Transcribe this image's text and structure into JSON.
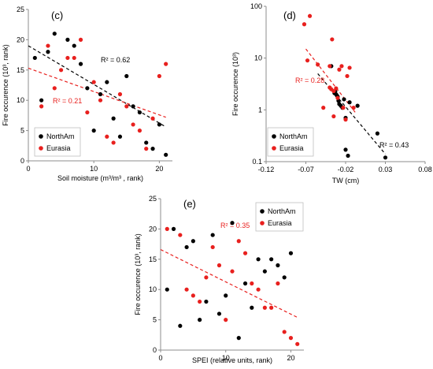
{
  "colors": {
    "north": "#000000",
    "eurasia": "#e8201e",
    "axis": "#8c8c8c"
  },
  "chart_data": [
    {
      "type": "scatter",
      "panel": "(c)",
      "xlabel": "Soil moisture (m³/m³ , rank)",
      "ylabel": "Fire occurence (10³, rank)",
      "xlim": [
        0,
        22
      ],
      "ylim": [
        0,
        25
      ],
      "xticks": [
        0,
        10,
        20
      ],
      "yticks": [
        0,
        5,
        10,
        15,
        20,
        25
      ],
      "legend": {
        "placement": "bottom-left",
        "boxed": true
      },
      "series": [
        {
          "name": "NorthAm",
          "points": [
            [
              1,
              17
            ],
            [
              2,
              10
            ],
            [
              3,
              18
            ],
            [
              4,
              21
            ],
            [
              6,
              20
            ],
            [
              7,
              19
            ],
            [
              8,
              16
            ],
            [
              9,
              12
            ],
            [
              10,
              5
            ],
            [
              11,
              11
            ],
            [
              12,
              13
            ],
            [
              13,
              7
            ],
            [
              14,
              4
            ],
            [
              15,
              14
            ],
            [
              16,
              9
            ],
            [
              17,
              8
            ],
            [
              18,
              3
            ],
            [
              19,
              2
            ],
            [
              20,
              6
            ],
            [
              21,
              1
            ]
          ]
        },
        {
          "name": "Eurasia",
          "points": [
            [
              2,
              9
            ],
            [
              3,
              19
            ],
            [
              4,
              12
            ],
            [
              5,
              15
            ],
            [
              6,
              17
            ],
            [
              7,
              17
            ],
            [
              8,
              20
            ],
            [
              9,
              8
            ],
            [
              10,
              13
            ],
            [
              11,
              10
            ],
            [
              12,
              4
            ],
            [
              13,
              3
            ],
            [
              14,
              11
            ],
            [
              15,
              9
            ],
            [
              16,
              6
            ],
            [
              17,
              5
            ],
            [
              18,
              2
            ],
            [
              19,
              7
            ],
            [
              20,
              14
            ],
            [
              21,
              16
            ]
          ]
        }
      ],
      "trendlines": [
        {
          "series": "NorthAm",
          "label": "R² = 0.62",
          "x": [
            0,
            21
          ],
          "y": [
            19,
            5.6
          ]
        },
        {
          "series": "Eurasia",
          "label": "R² = 0.21",
          "x": [
            0,
            21
          ],
          "y": [
            15.3,
            7.2
          ]
        }
      ]
    },
    {
      "type": "scatter",
      "panel": "(d)",
      "xlabel": "TW (cm)",
      "ylabel": "Fire occurence (10³)",
      "xlim": [
        -0.12,
        0.08
      ],
      "ylim": [
        0.1,
        100
      ],
      "yscale": "log",
      "xticks": [
        -0.12,
        -0.07,
        -0.02,
        0.03,
        0.08
      ],
      "yticks": [
        0.1,
        1,
        10,
        100
      ],
      "xtick_labels": [
        "-0.12",
        "-0.07",
        "-0.02",
        "0.03",
        "0.08"
      ],
      "ytick_labels": [
        "0.1",
        "1",
        "10",
        "100"
      ],
      "legend": {
        "placement": "bottom-left",
        "boxed": true
      },
      "series": [
        {
          "name": "NorthAm",
          "points": [
            [
              -0.038,
              7
            ],
            [
              -0.034,
              2.1
            ],
            [
              -0.033,
              2.3
            ],
            [
              -0.032,
              2.0
            ],
            [
              -0.031,
              1.9
            ],
            [
              -0.03,
              1.8
            ],
            [
              -0.029,
              1.5
            ],
            [
              -0.028,
              1.3
            ],
            [
              -0.026,
              1.2
            ],
            [
              -0.024,
              1.1
            ],
            [
              -0.022,
              1.6
            ],
            [
              -0.02,
              0.7
            ],
            [
              -0.02,
              0.17
            ],
            [
              -0.017,
              0.13
            ],
            [
              -0.015,
              1.4
            ],
            [
              -0.005,
              1.2
            ],
            [
              0.02,
              0.35
            ],
            [
              0.03,
              0.12
            ]
          ]
        },
        {
          "name": "Eurasia",
          "points": [
            [
              -0.072,
              45
            ],
            [
              -0.065,
              65
            ],
            [
              -0.068,
              9
            ],
            [
              -0.055,
              7.5
            ],
            [
              -0.048,
              1.1
            ],
            [
              -0.04,
              2.7
            ],
            [
              -0.038,
              2.5
            ],
            [
              -0.037,
              23
            ],
            [
              -0.035,
              2.3
            ],
            [
              -0.032,
              2.6
            ],
            [
              -0.03,
              1.7
            ],
            [
              -0.028,
              6
            ],
            [
              -0.025,
              7
            ],
            [
              -0.023,
              1.1
            ],
            [
              -0.02,
              0.65
            ],
            [
              -0.018,
              4.5
            ],
            [
              -0.015,
              6.5
            ],
            [
              -0.01,
              1.1
            ],
            [
              -0.035,
              0.75
            ],
            [
              -0.04,
              7
            ]
          ]
        }
      ],
      "trendlines": [
        {
          "series": "NorthAm",
          "label": "R² = 0.43",
          "x": [
            -0.055,
            0.03
          ],
          "y": [
            5,
            0.14
          ]
        },
        {
          "series": "Eurasia",
          "label": "R² = 0.28",
          "x": [
            -0.07,
            -0.008
          ],
          "y": [
            15,
            0.9
          ]
        }
      ]
    },
    {
      "type": "scatter",
      "panel": "(e)",
      "xlabel": "SPEI (relative units, rank)",
      "ylabel": "Fire occurence (10³, rank)",
      "xlim": [
        0,
        22
      ],
      "ylim": [
        0,
        25
      ],
      "xticks": [
        0,
        10,
        20
      ],
      "yticks": [
        0,
        5,
        10,
        15,
        20,
        25
      ],
      "legend": {
        "placement": "top-right",
        "boxed": true
      },
      "series": [
        {
          "name": "NorthAm",
          "points": [
            [
              1,
              10
            ],
            [
              2,
              20
            ],
            [
              3,
              4
            ],
            [
              4,
              17
            ],
            [
              5,
              18
            ],
            [
              6,
              5
            ],
            [
              7,
              8
            ],
            [
              8,
              19
            ],
            [
              9,
              6
            ],
            [
              10,
              9
            ],
            [
              11,
              21
            ],
            [
              12,
              2
            ],
            [
              13,
              11
            ],
            [
              14,
              7
            ],
            [
              15,
              15
            ],
            [
              16,
              13
            ],
            [
              17,
              15
            ],
            [
              18,
              14
            ],
            [
              19,
              12
            ],
            [
              20,
              16
            ]
          ]
        },
        {
          "name": "Eurasia",
          "points": [
            [
              1,
              20
            ],
            [
              3,
              19
            ],
            [
              4,
              10
            ],
            [
              5,
              9
            ],
            [
              6,
              8
            ],
            [
              7,
              12
            ],
            [
              8,
              17
            ],
            [
              9,
              14
            ],
            [
              10,
              5
            ],
            [
              11,
              13
            ],
            [
              12,
              18
            ],
            [
              13,
              16
            ],
            [
              14,
              11
            ],
            [
              15,
              10
            ],
            [
              16,
              7
            ],
            [
              17,
              7
            ],
            [
              18,
              11
            ],
            [
              19,
              3
            ],
            [
              20,
              2
            ],
            [
              21,
              1
            ]
          ]
        }
      ],
      "trendlines": [
        {
          "series": "Eurasia",
          "label": "R² = 0.35",
          "x": [
            0,
            21
          ],
          "y": [
            16.6,
            5.4
          ]
        }
      ]
    }
  ]
}
